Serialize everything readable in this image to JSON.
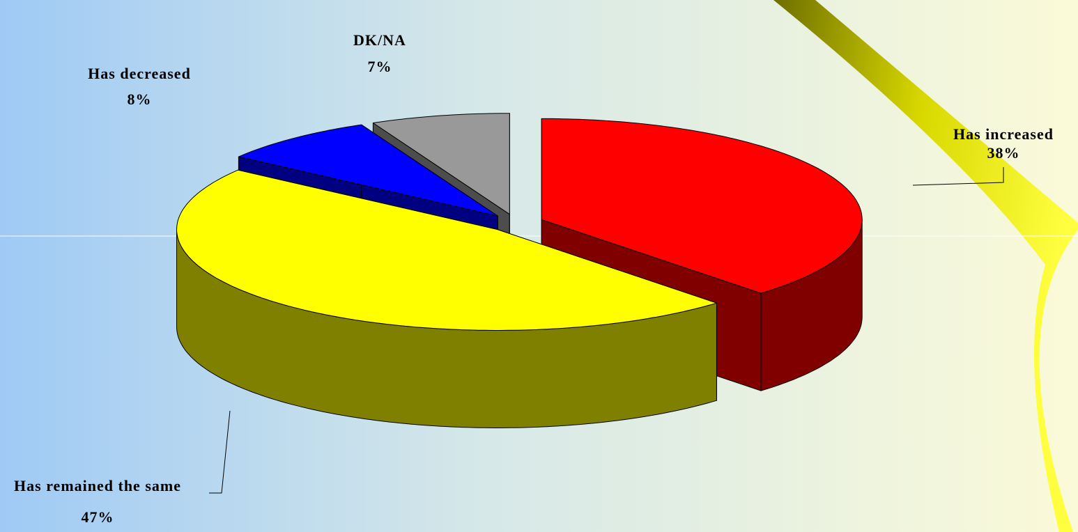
{
  "chart_data": {
    "type": "pie3d",
    "categories": [
      "Has increased",
      "Has remained the same",
      "Has decreased",
      "DK/NA"
    ],
    "values": [
      38,
      47,
      8,
      7
    ],
    "value_labels": [
      "38%",
      "47%",
      "8%",
      "7%"
    ],
    "colors": [
      "#ff0000",
      "#ffff00",
      "#0000ff",
      "#999999"
    ]
  }
}
